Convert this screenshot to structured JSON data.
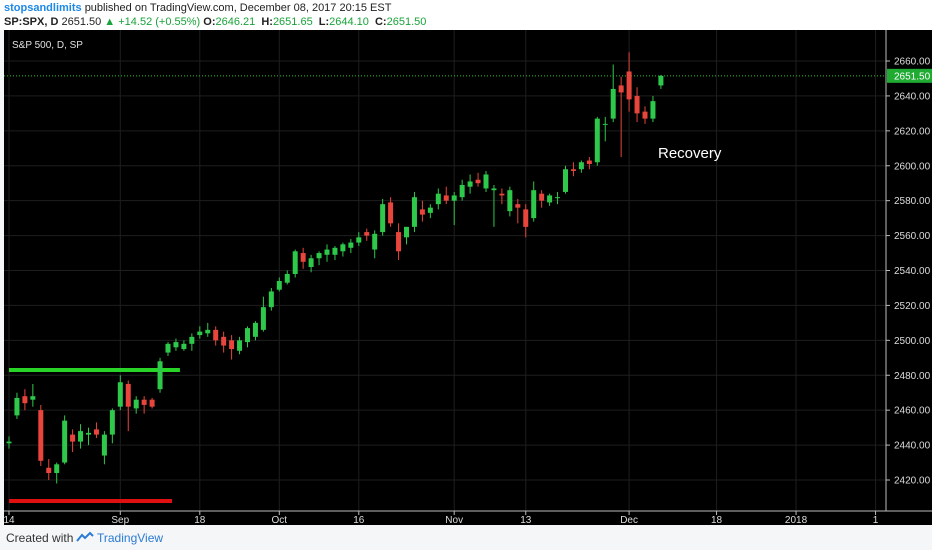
{
  "header": {
    "author": "stopsandlimits",
    "published": "published on TradingView.com, December 08, 2017 20:15 EST",
    "symbol": "SP:SPX, D",
    "price": "2651.50",
    "change_arrow": "▲",
    "change": "+14.52 (+0.55%)",
    "o_label": "O:",
    "o_value": "2646.21",
    "h_label": "H:",
    "h_value": "2651.65",
    "l_label": "L:",
    "l_value": "2644.10",
    "c_label": "C:",
    "c_value": "2651.50"
  },
  "footer": {
    "created_with": "Created with",
    "brand": "TradingView"
  },
  "colors": {
    "up": "#2ec84a",
    "down": "#e8453c",
    "support": "#e01010",
    "resistance": "#28d428",
    "price_line": "#28c828",
    "price_label_bg": "#1faa32"
  },
  "chart_data": {
    "type": "candlestick",
    "title": "S&P 500, D, SP",
    "annotation": "Recovery",
    "ylim": [
      2405,
      2665
    ],
    "y_ticks": [
      2420,
      2440,
      2460,
      2480,
      2500,
      2520,
      2540,
      2560,
      2580,
      2600,
      2620,
      2640,
      2660
    ],
    "y_tick_labels": [
      "2420.00",
      "2440.00",
      "2460.00",
      "2480.00",
      "2500.00",
      "2520.00",
      "2540.00",
      "2560.00",
      "2580.00",
      "2600.00",
      "2620.00",
      "2640.00",
      "2660.00"
    ],
    "x_ticks": [
      {
        "label": "14",
        "index": 0
      },
      {
        "label": "Sep",
        "index": 14
      },
      {
        "label": "18",
        "index": 24
      },
      {
        "label": "Oct",
        "index": 34
      },
      {
        "label": "16",
        "index": 44
      },
      {
        "label": "Nov",
        "index": 56
      },
      {
        "label": "13",
        "index": 65
      },
      {
        "label": "Dec",
        "index": 78
      },
      {
        "label": "18",
        "index": 89
      },
      {
        "label": "2018",
        "index": 99
      },
      {
        "label": "1",
        "index": 109
      }
    ],
    "current_price": 2651.5,
    "current_price_label": "2651.50",
    "support_level": 2408,
    "support_range": [
      0,
      20.5
    ],
    "resistance_level": 2483,
    "resistance_range": [
      0,
      21.5
    ],
    "candles": [
      {
        "o": 2441,
        "h": 2445,
        "l": 2438,
        "c": 2442
      },
      {
        "o": 2457,
        "h": 2470,
        "l": 2455,
        "c": 2467
      },
      {
        "o": 2468,
        "h": 2472,
        "l": 2460,
        "c": 2464
      },
      {
        "o": 2466,
        "h": 2475,
        "l": 2462,
        "c": 2468
      },
      {
        "o": 2460,
        "h": 2463,
        "l": 2428,
        "c": 2431
      },
      {
        "o": 2427,
        "h": 2432,
        "l": 2420,
        "c": 2424
      },
      {
        "o": 2424,
        "h": 2430,
        "l": 2418,
        "c": 2429
      },
      {
        "o": 2430,
        "h": 2457,
        "l": 2429,
        "c": 2454
      },
      {
        "o": 2446,
        "h": 2449,
        "l": 2436,
        "c": 2442
      },
      {
        "o": 2442,
        "h": 2452,
        "l": 2438,
        "c": 2448
      },
      {
        "o": 2446,
        "h": 2450,
        "l": 2440,
        "c": 2447
      },
      {
        "o": 2449,
        "h": 2453,
        "l": 2444,
        "c": 2446
      },
      {
        "o": 2434,
        "h": 2448,
        "l": 2429,
        "c": 2446
      },
      {
        "o": 2446,
        "h": 2461,
        "l": 2441,
        "c": 2460
      },
      {
        "o": 2462,
        "h": 2480,
        "l": 2460,
        "c": 2476
      },
      {
        "o": 2475,
        "h": 2477,
        "l": 2448,
        "c": 2462
      },
      {
        "o": 2461,
        "h": 2468,
        "l": 2458,
        "c": 2466
      },
      {
        "o": 2466,
        "h": 2468,
        "l": 2458,
        "c": 2463
      },
      {
        "o": 2466,
        "h": 2467,
        "l": 2461,
        "c": 2462
      },
      {
        "o": 2472,
        "h": 2490,
        "l": 2470,
        "c": 2488
      },
      {
        "o": 2493,
        "h": 2499,
        "l": 2491,
        "c": 2498
      },
      {
        "o": 2496,
        "h": 2501,
        "l": 2494,
        "c": 2499
      },
      {
        "o": 2495,
        "h": 2500,
        "l": 2494,
        "c": 2498
      },
      {
        "o": 2498,
        "h": 2504,
        "l": 2494,
        "c": 2502
      },
      {
        "o": 2503,
        "h": 2508,
        "l": 2501,
        "c": 2505
      },
      {
        "o": 2504,
        "h": 2510,
        "l": 2502,
        "c": 2506
      },
      {
        "o": 2506,
        "h": 2508,
        "l": 2497,
        "c": 2500
      },
      {
        "o": 2502,
        "h": 2505,
        "l": 2493,
        "c": 2497
      },
      {
        "o": 2500,
        "h": 2503,
        "l": 2489,
        "c": 2495
      },
      {
        "o": 2494,
        "h": 2502,
        "l": 2492,
        "c": 2500
      },
      {
        "o": 2499,
        "h": 2508,
        "l": 2496,
        "c": 2507
      },
      {
        "o": 2502,
        "h": 2511,
        "l": 2500,
        "c": 2510
      },
      {
        "o": 2506,
        "h": 2525,
        "l": 2505,
        "c": 2519
      },
      {
        "o": 2519,
        "h": 2530,
        "l": 2517,
        "c": 2528
      },
      {
        "o": 2529,
        "h": 2536,
        "l": 2528,
        "c": 2534
      },
      {
        "o": 2533,
        "h": 2540,
        "l": 2532,
        "c": 2538
      },
      {
        "o": 2538,
        "h": 2552,
        "l": 2536,
        "c": 2551
      },
      {
        "o": 2550,
        "h": 2553,
        "l": 2541,
        "c": 2545
      },
      {
        "o": 2542,
        "h": 2549,
        "l": 2539,
        "c": 2547
      },
      {
        "o": 2547,
        "h": 2551,
        "l": 2543,
        "c": 2550
      },
      {
        "o": 2549,
        "h": 2555,
        "l": 2545,
        "c": 2552
      },
      {
        "o": 2549,
        "h": 2554,
        "l": 2546,
        "c": 2553
      },
      {
        "o": 2551,
        "h": 2556,
        "l": 2548,
        "c": 2555
      },
      {
        "o": 2553,
        "h": 2558,
        "l": 2550,
        "c": 2556
      },
      {
        "o": 2556,
        "h": 2562,
        "l": 2554,
        "c": 2559
      },
      {
        "o": 2562,
        "h": 2564,
        "l": 2557,
        "c": 2560
      },
      {
        "o": 2552,
        "h": 2563,
        "l": 2547,
        "c": 2561
      },
      {
        "o": 2562,
        "h": 2581,
        "l": 2560,
        "c": 2578
      },
      {
        "o": 2579,
        "h": 2582,
        "l": 2565,
        "c": 2567
      },
      {
        "o": 2562,
        "h": 2567,
        "l": 2546,
        "c": 2551
      },
      {
        "o": 2559,
        "h": 2565,
        "l": 2555,
        "c": 2565
      },
      {
        "o": 2565,
        "h": 2585,
        "l": 2562,
        "c": 2582
      },
      {
        "o": 2575,
        "h": 2580,
        "l": 2568,
        "c": 2572
      },
      {
        "o": 2573,
        "h": 2578,
        "l": 2570,
        "c": 2576
      },
      {
        "o": 2578,
        "h": 2587,
        "l": 2575,
        "c": 2584
      },
      {
        "o": 2583,
        "h": 2588,
        "l": 2578,
        "c": 2580
      },
      {
        "o": 2580,
        "h": 2585,
        "l": 2566,
        "c": 2583
      },
      {
        "o": 2582,
        "h": 2592,
        "l": 2580,
        "c": 2589
      },
      {
        "o": 2588,
        "h": 2595,
        "l": 2584,
        "c": 2591
      },
      {
        "o": 2592,
        "h": 2596,
        "l": 2588,
        "c": 2590
      },
      {
        "o": 2587,
        "h": 2597,
        "l": 2585,
        "c": 2595
      },
      {
        "o": 2586,
        "h": 2589,
        "l": 2565,
        "c": 2587
      },
      {
        "o": 2584,
        "h": 2587,
        "l": 2578,
        "c": 2583
      },
      {
        "o": 2574,
        "h": 2588,
        "l": 2571,
        "c": 2586
      },
      {
        "o": 2578,
        "h": 2581,
        "l": 2567,
        "c": 2576
      },
      {
        "o": 2575,
        "h": 2578,
        "l": 2559,
        "c": 2565
      },
      {
        "o": 2570,
        "h": 2591,
        "l": 2568,
        "c": 2586
      },
      {
        "o": 2584,
        "h": 2586,
        "l": 2576,
        "c": 2580
      },
      {
        "o": 2579,
        "h": 2584,
        "l": 2577,
        "c": 2583
      },
      {
        "o": 2582,
        "h": 2585,
        "l": 2578,
        "c": 2582
      },
      {
        "o": 2585,
        "h": 2600,
        "l": 2584,
        "c": 2598
      },
      {
        "o": 2598,
        "h": 2602,
        "l": 2594,
        "c": 2597
      },
      {
        "o": 2598,
        "h": 2603,
        "l": 2596,
        "c": 2602
      },
      {
        "o": 2603,
        "h": 2605,
        "l": 2598,
        "c": 2601
      },
      {
        "o": 2602,
        "h": 2628,
        "l": 2600,
        "c": 2627
      },
      {
        "o": 2624,
        "h": 2628,
        "l": 2614,
        "c": 2624
      },
      {
        "o": 2627,
        "h": 2658,
        "l": 2625,
        "c": 2644
      },
      {
        "o": 2646,
        "h": 2651,
        "l": 2605,
        "c": 2642
      },
      {
        "o": 2654,
        "h": 2665,
        "l": 2631,
        "c": 2638
      },
      {
        "o": 2640,
        "h": 2645,
        "l": 2625,
        "c": 2630
      },
      {
        "o": 2631,
        "h": 2634,
        "l": 2624,
        "c": 2627
      },
      {
        "o": 2627,
        "h": 2640,
        "l": 2625,
        "c": 2637
      },
      {
        "o": 2646,
        "h": 2652,
        "l": 2644,
        "c": 2651.5
      }
    ]
  }
}
